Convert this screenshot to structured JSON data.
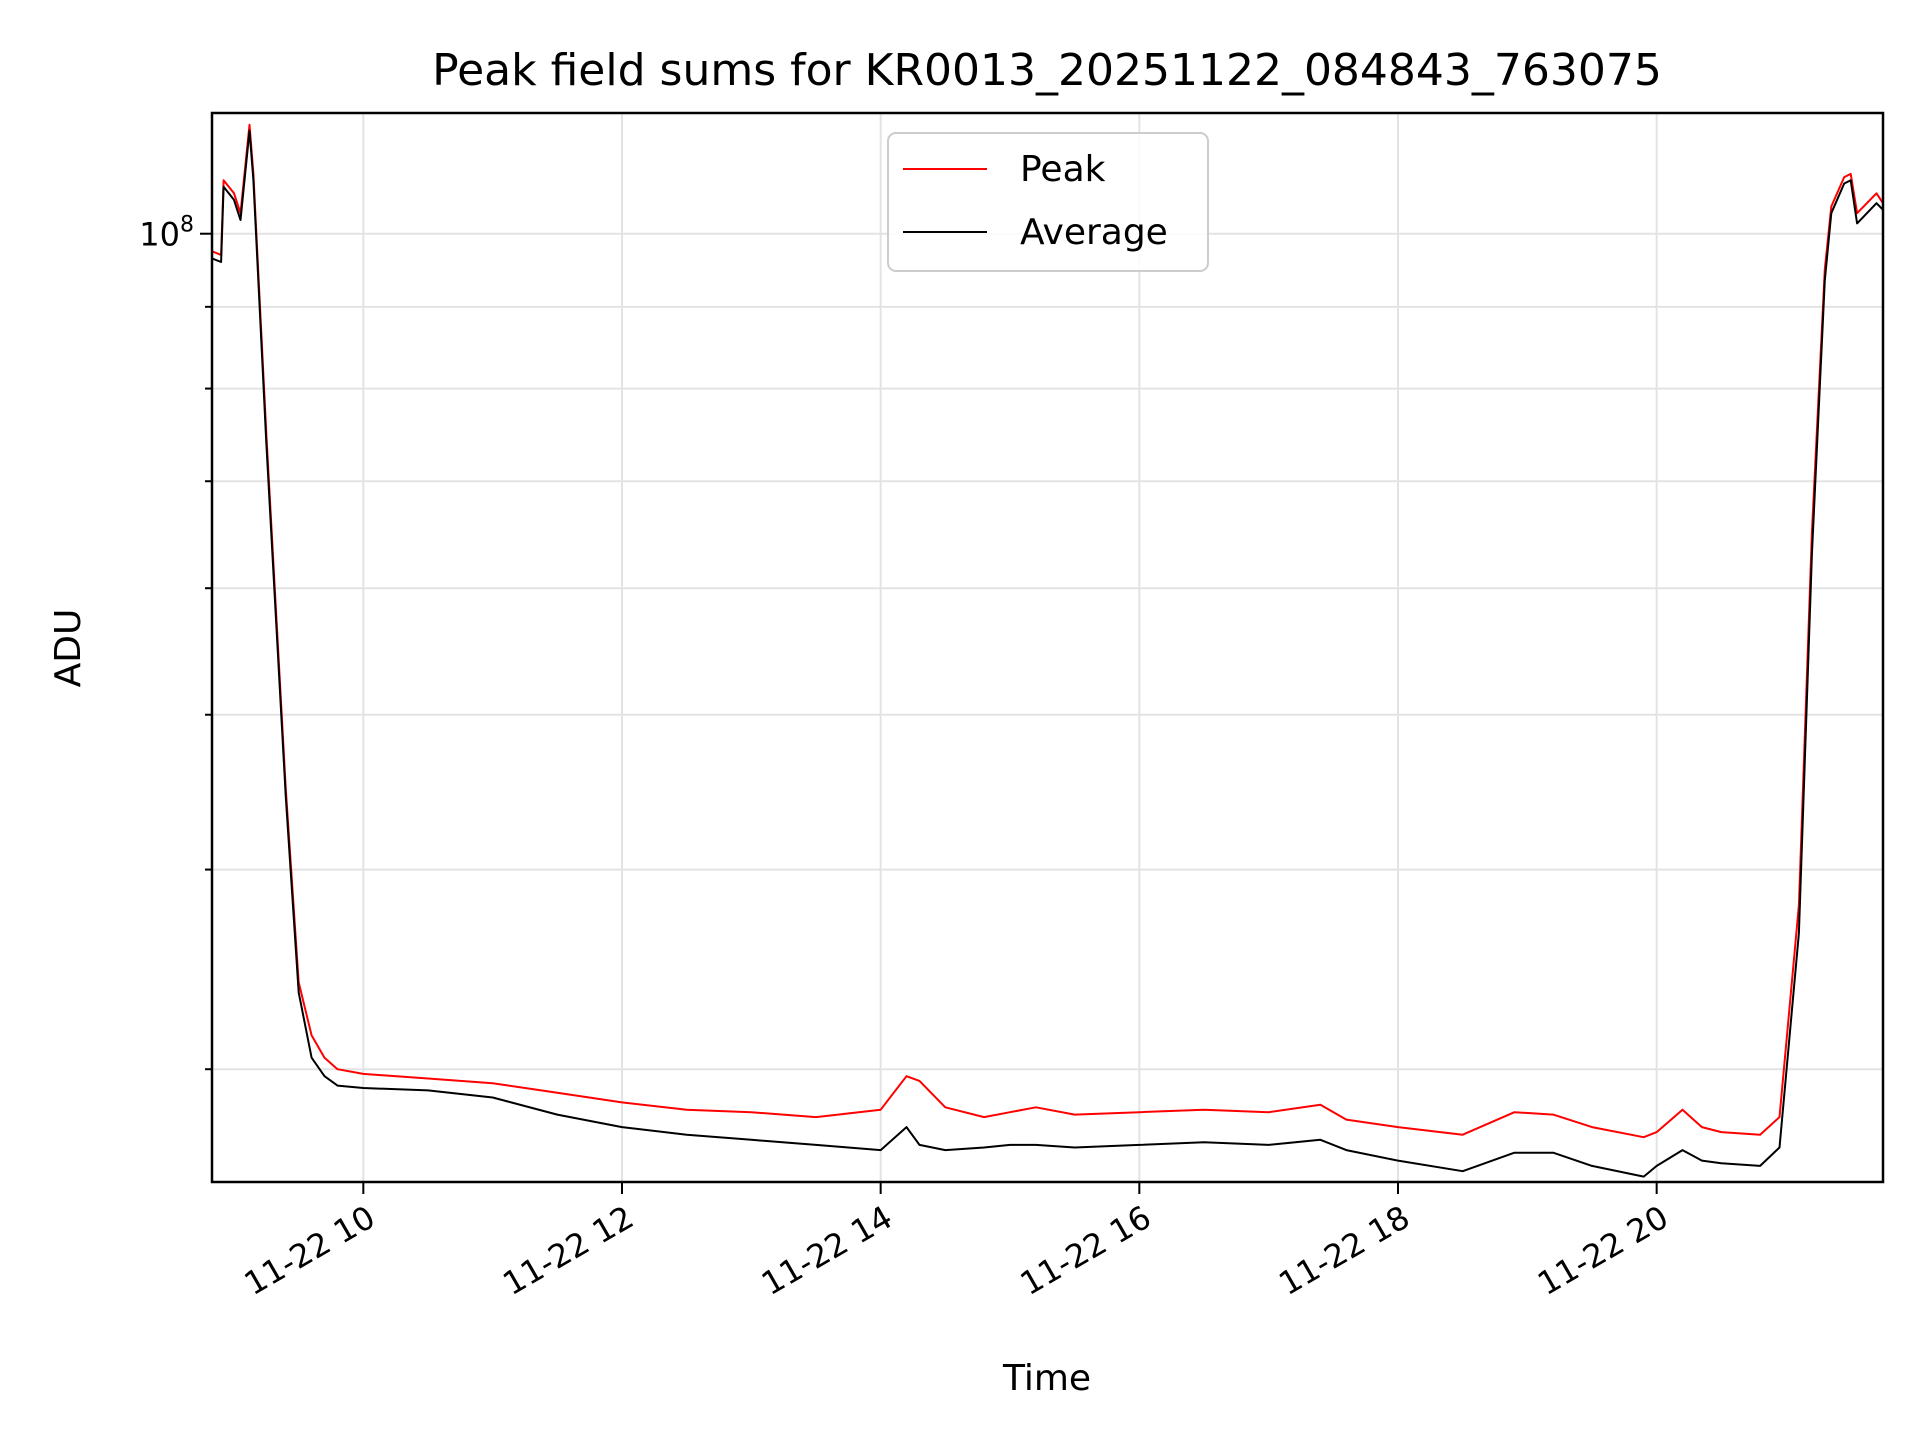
{
  "chart_data": {
    "type": "line",
    "title": "Peak field sums for KR0013_20251122_084843_763075",
    "xlabel": "Time",
    "ylabel": "ADU",
    "yscale": "log",
    "ylim": [
      25500000.0,
      119000000.0
    ],
    "xlim": [
      8.83,
      21.75
    ],
    "grid": true,
    "legend_location": "top-center",
    "x_ticks": [
      {
        "value": 10,
        "label": "11-22 10"
      },
      {
        "value": 12,
        "label": "11-22 12"
      },
      {
        "value": 14,
        "label": "11-22 14"
      },
      {
        "value": 16,
        "label": "11-22 16"
      },
      {
        "value": 18,
        "label": "11-22 18"
      },
      {
        "value": 20,
        "label": "11-22 20"
      }
    ],
    "y_major_ticks": [
      {
        "value": 100000000,
        "base": "10",
        "exp": "8"
      }
    ],
    "y_minor_ticks": [
      30000000,
      40000000,
      50000000,
      60000000,
      70000000,
      80000000,
      90000000
    ],
    "series": [
      {
        "name": "Peak",
        "color": "#ff0000",
        "x": [
          8.83,
          8.9,
          8.92,
          9.0,
          9.05,
          9.12,
          9.15,
          9.25,
          9.4,
          9.5,
          9.6,
          9.7,
          9.8,
          10.0,
          10.5,
          11.0,
          11.5,
          12.0,
          12.5,
          13.0,
          13.5,
          14.0,
          14.2,
          14.3,
          14.5,
          14.8,
          15.0,
          15.2,
          15.5,
          16.0,
          16.5,
          17.0,
          17.4,
          17.6,
          18.0,
          18.5,
          18.9,
          19.2,
          19.5,
          19.9,
          20.0,
          20.2,
          20.35,
          20.5,
          20.8,
          20.95,
          21.1,
          21.2,
          21.3,
          21.35,
          21.45,
          21.5,
          21.55,
          21.7,
          21.75
        ],
        "y": [
          97500000,
          97000000,
          108000000,
          106000000,
          103000000,
          117000000,
          109000000,
          75000000,
          45000000,
          34000000,
          31500000,
          30500000,
          30000000,
          29800000,
          29600000,
          29400000,
          29000000,
          28600000,
          28300000,
          28200000,
          28000000,
          28300000,
          29700000,
          29500000,
          28400000,
          28000000,
          28200000,
          28400000,
          28100000,
          28200000,
          28300000,
          28200000,
          28500000,
          27900000,
          27600000,
          27300000,
          28200000,
          28100000,
          27600000,
          27200000,
          27400000,
          28300000,
          27600000,
          27400000,
          27300000,
          28000000,
          38000000,
          65000000,
          95000000,
          104000000,
          108500000,
          109000000,
          103000000,
          106000000,
          104500000
        ]
      },
      {
        "name": "Average",
        "color": "#000000",
        "x": [
          8.83,
          8.9,
          8.92,
          9.0,
          9.05,
          9.12,
          9.15,
          9.25,
          9.4,
          9.5,
          9.6,
          9.7,
          9.8,
          10.0,
          10.5,
          11.0,
          11.5,
          12.0,
          12.5,
          13.0,
          13.5,
          14.0,
          14.2,
          14.3,
          14.5,
          14.8,
          15.0,
          15.2,
          15.5,
          16.0,
          16.5,
          17.0,
          17.4,
          17.6,
          18.0,
          18.5,
          18.9,
          19.2,
          19.5,
          19.9,
          20.0,
          20.2,
          20.35,
          20.5,
          20.8,
          20.95,
          21.1,
          21.2,
          21.3,
          21.35,
          21.45,
          21.5,
          21.55,
          21.7,
          21.75
        ],
        "y": [
          96500000,
          96000000,
          107000000,
          105000000,
          102000000,
          116000000,
          108000000,
          74000000,
          44500000,
          33500000,
          30500000,
          29700000,
          29300000,
          29200000,
          29100000,
          28800000,
          28100000,
          27600000,
          27300000,
          27100000,
          26900000,
          26700000,
          27600000,
          26900000,
          26700000,
          26800000,
          26900000,
          26900000,
          26800000,
          26900000,
          27000000,
          26900000,
          27100000,
          26700000,
          26300000,
          25900000,
          26600000,
          26600000,
          26100000,
          25700000,
          26100000,
          26700000,
          26300000,
          26200000,
          26100000,
          26800000,
          36500000,
          63000000,
          93500000,
          103000000,
          107500000,
          108000000,
          101500000,
          104500000,
          103500000
        ]
      }
    ]
  }
}
